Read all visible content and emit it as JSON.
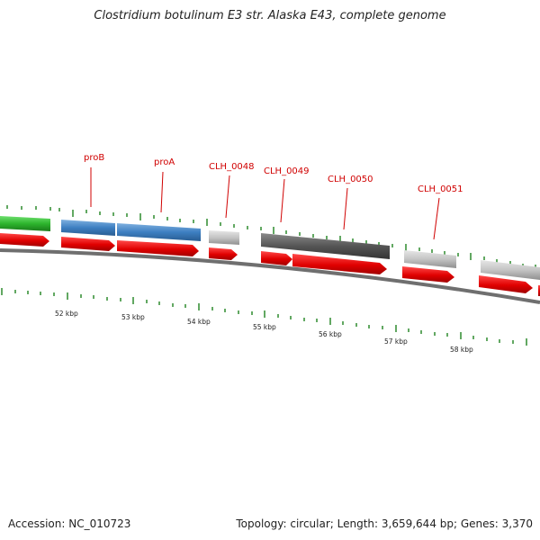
{
  "title": "Clostridium botulinum E3 str. Alaska E43, complete genome",
  "footer": {
    "accession": "Accession: NC_010723",
    "summary": "Topology: circular; Length: 3,659,644 bp; Genes: 3,370"
  },
  "colors": {
    "cds_forward": "#e00000",
    "feature_green": "#2db52d",
    "feature_blue": "#3d7fc1",
    "feature_light_gray": "#c0c0c0",
    "feature_dark_gray": "#555555",
    "backbone": "#777777",
    "tick": "#2e8b2e",
    "label": "#d00000"
  },
  "genes": [
    {
      "label": "proB"
    },
    {
      "label": "proA"
    },
    {
      "label": "CLH_0048"
    },
    {
      "label": "CLH_0049"
    },
    {
      "label": "CLH_0050"
    },
    {
      "label": "CLH_0051"
    }
  ],
  "scale_labels": [
    "52 kbp",
    "53 kbp",
    "54 kbp",
    "55 kbp",
    "56 kbp",
    "57 kbp",
    "58 kbp"
  ]
}
